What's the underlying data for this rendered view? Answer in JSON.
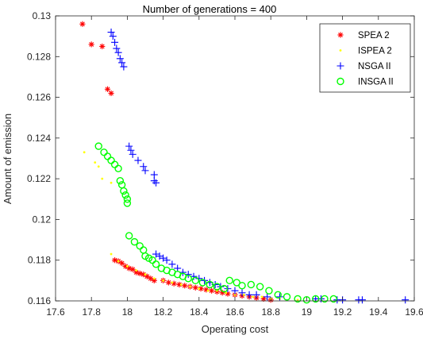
{
  "chart_data": {
    "type": "scatter",
    "title": "Number of generations = 400",
    "xlabel": "Operating cost",
    "ylabel": "Amount of emission",
    "xlim": [
      17.6,
      19.6
    ],
    "ylim": [
      0.116,
      0.13
    ],
    "xticks": [
      17.6,
      17.8,
      18,
      18.2,
      18.4,
      18.6,
      18.8,
      19,
      19.2,
      19.4,
      19.6
    ],
    "yticks": [
      0.116,
      0.118,
      0.12,
      0.122,
      0.124,
      0.126,
      0.128,
      0.13
    ],
    "xtick_labels": [
      "17.6",
      "17.8",
      "18",
      "18.2",
      "18.4",
      "18.6",
      "18.8",
      "19",
      "19.2",
      "19.4",
      "19.6"
    ],
    "ytick_labels": [
      "0.116",
      "0.118",
      "0.12",
      "0.122",
      "0.124",
      "0.126",
      "0.128",
      "0.13"
    ],
    "grid": false,
    "legend_position": "top-right",
    "series": [
      {
        "name": "SPEA 2",
        "marker": "asterisk",
        "color": "#ff0000",
        "points": [
          [
            17.75,
            0.1296
          ],
          [
            17.8,
            0.1286
          ],
          [
            17.86,
            0.1285
          ],
          [
            17.89,
            0.1264
          ],
          [
            17.91,
            0.1262
          ],
          [
            17.93,
            0.118
          ],
          [
            17.95,
            0.11795
          ],
          [
            17.97,
            0.11785
          ],
          [
            17.99,
            0.1177
          ],
          [
            18.01,
            0.1176
          ],
          [
            18.03,
            0.11755
          ],
          [
            18.05,
            0.1174
          ],
          [
            18.07,
            0.11735
          ],
          [
            18.09,
            0.1173
          ],
          [
            18.11,
            0.1172
          ],
          [
            18.13,
            0.1171
          ],
          [
            18.15,
            0.117
          ],
          [
            18.2,
            0.117
          ],
          [
            18.23,
            0.1169
          ],
          [
            18.26,
            0.11685
          ],
          [
            18.29,
            0.1168
          ],
          [
            18.32,
            0.11675
          ],
          [
            18.35,
            0.1167
          ],
          [
            18.38,
            0.11665
          ],
          [
            18.41,
            0.1166
          ],
          [
            18.44,
            0.11655
          ],
          [
            18.47,
            0.1165
          ],
          [
            18.5,
            0.11645
          ],
          [
            18.53,
            0.1164
          ],
          [
            18.56,
            0.11635
          ],
          [
            18.6,
            0.1163
          ],
          [
            18.64,
            0.11625
          ],
          [
            18.68,
            0.1162
          ],
          [
            18.72,
            0.11615
          ],
          [
            18.76,
            0.1161
          ],
          [
            18.8,
            0.11605
          ]
        ]
      },
      {
        "name": "ISPEA 2",
        "marker": "point",
        "color": "#ffff00",
        "points": [
          [
            17.76,
            0.1233
          ],
          [
            17.82,
            0.1228
          ],
          [
            17.84,
            0.1226
          ],
          [
            17.86,
            0.122
          ],
          [
            17.91,
            0.1218
          ],
          [
            17.91,
            0.1183
          ],
          [
            17.95,
            0.11795
          ],
          [
            18.0,
            0.1177
          ],
          [
            18.05,
            0.1175
          ],
          [
            18.1,
            0.1173
          ],
          [
            18.15,
            0.1171
          ],
          [
            18.2,
            0.117
          ],
          [
            18.25,
            0.1169
          ],
          [
            18.3,
            0.1168
          ],
          [
            18.35,
            0.1167
          ],
          [
            18.4,
            0.1166
          ],
          [
            18.45,
            0.1165
          ],
          [
            18.5,
            0.1165
          ],
          [
            18.55,
            0.1164
          ],
          [
            18.6,
            0.1163
          ],
          [
            18.65,
            0.1163
          ],
          [
            18.7,
            0.1162
          ],
          [
            18.75,
            0.1162
          ],
          [
            18.8,
            0.1161
          ],
          [
            18.85,
            0.1161
          ],
          [
            18.95,
            0.11605
          ]
        ]
      },
      {
        "name": "NSGA II",
        "marker": "plus",
        "color": "#0000ff",
        "points": [
          [
            17.91,
            0.1292
          ],
          [
            17.92,
            0.129
          ],
          [
            17.93,
            0.1287
          ],
          [
            17.94,
            0.1284
          ],
          [
            17.95,
            0.1282
          ],
          [
            17.96,
            0.1279
          ],
          [
            17.97,
            0.1277
          ],
          [
            17.98,
            0.1275
          ],
          [
            18.01,
            0.1236
          ],
          [
            18.02,
            0.1234
          ],
          [
            18.03,
            0.1232
          ],
          [
            18.06,
            0.1229
          ],
          [
            18.09,
            0.1226
          ],
          [
            18.1,
            0.1224
          ],
          [
            18.15,
            0.1222
          ],
          [
            18.15,
            0.1219
          ],
          [
            18.16,
            0.1218
          ],
          [
            18.16,
            0.1183
          ],
          [
            18.18,
            0.1182
          ],
          [
            18.2,
            0.1181
          ],
          [
            18.22,
            0.118
          ],
          [
            18.25,
            0.1178
          ],
          [
            18.28,
            0.1176
          ],
          [
            18.31,
            0.1174
          ],
          [
            18.34,
            0.1173
          ],
          [
            18.37,
            0.1172
          ],
          [
            18.4,
            0.1171
          ],
          [
            18.43,
            0.117
          ],
          [
            18.46,
            0.1169
          ],
          [
            18.49,
            0.1168
          ],
          [
            18.52,
            0.1167
          ],
          [
            18.56,
            0.1166
          ],
          [
            18.6,
            0.1165
          ],
          [
            18.64,
            0.1164
          ],
          [
            18.68,
            0.1163
          ],
          [
            18.72,
            0.1163
          ],
          [
            18.78,
            0.1162
          ],
          [
            18.85,
            0.1162
          ],
          [
            19.05,
            0.1161
          ],
          [
            19.08,
            0.1161
          ],
          [
            19.17,
            0.11605
          ],
          [
            19.2,
            0.11605
          ],
          [
            19.29,
            0.11605
          ],
          [
            19.31,
            0.11605
          ],
          [
            19.55,
            0.11605
          ]
        ]
      },
      {
        "name": "INSGA II",
        "marker": "circle",
        "color": "#00ff00",
        "points": [
          [
            17.84,
            0.1236
          ],
          [
            17.87,
            0.1233
          ],
          [
            17.89,
            0.1231
          ],
          [
            17.91,
            0.1229
          ],
          [
            17.93,
            0.1227
          ],
          [
            17.95,
            0.1225
          ],
          [
            17.96,
            0.1219
          ],
          [
            17.97,
            0.1217
          ],
          [
            17.98,
            0.1214
          ],
          [
            17.99,
            0.1212
          ],
          [
            18.0,
            0.121
          ],
          [
            18.0,
            0.1208
          ],
          [
            18.01,
            0.1192
          ],
          [
            18.04,
            0.1189
          ],
          [
            18.07,
            0.1187
          ],
          [
            18.09,
            0.1185
          ],
          [
            18.1,
            0.1182
          ],
          [
            18.12,
            0.1181
          ],
          [
            18.14,
            0.118
          ],
          [
            18.16,
            0.1178
          ],
          [
            18.19,
            0.1176
          ],
          [
            18.22,
            0.1175
          ],
          [
            18.25,
            0.1174
          ],
          [
            18.28,
            0.1173
          ],
          [
            18.31,
            0.1172
          ],
          [
            18.34,
            0.1171
          ],
          [
            18.38,
            0.117
          ],
          [
            18.42,
            0.1169
          ],
          [
            18.46,
            0.1168
          ],
          [
            18.5,
            0.1167
          ],
          [
            18.54,
            0.1166
          ],
          [
            18.57,
            0.117
          ],
          [
            18.61,
            0.1169
          ],
          [
            18.64,
            0.11675
          ],
          [
            18.69,
            0.1168
          ],
          [
            18.74,
            0.1167
          ],
          [
            18.79,
            0.1165
          ],
          [
            18.84,
            0.1163
          ],
          [
            18.89,
            0.1162
          ],
          [
            18.95,
            0.1161
          ],
          [
            19.0,
            0.11605
          ],
          [
            19.05,
            0.1161
          ],
          [
            19.1,
            0.1161
          ],
          [
            19.15,
            0.1161
          ]
        ]
      }
    ]
  }
}
